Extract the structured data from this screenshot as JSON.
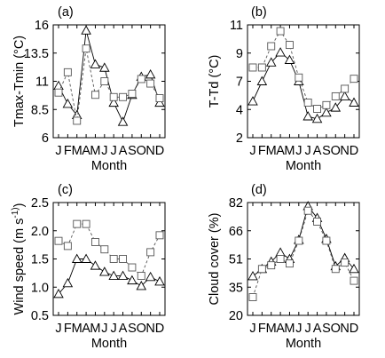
{
  "chart_data": [
    {
      "type": "line",
      "panel_label": "(a)",
      "ylabel": "Tmax-Tmin (",
      "ylabel_unit": "°C)",
      "xlabel": "Month",
      "categories": [
        "J",
        "F",
        "M",
        "A",
        "M",
        "J",
        "J",
        "A",
        "S",
        "O",
        "N",
        "D"
      ],
      "yticks": [
        "6",
        "8.5",
        "11",
        "13.5",
        "16"
      ],
      "ylim": [
        6,
        16
      ],
      "series": [
        {
          "marker": "triangle",
          "style": "solid",
          "values": [
            10.6,
            9.0,
            8.0,
            15.5,
            12.5,
            12.2,
            9.1,
            7.4,
            9.8,
            11.4,
            11.6,
            9.1
          ]
        },
        {
          "marker": "square",
          "style": "dashed",
          "values": [
            10.0,
            11.8,
            7.5,
            13.9,
            9.8,
            11.0,
            9.6,
            9.6,
            9.9,
            11.2,
            10.8,
            9.5
          ]
        }
      ]
    },
    {
      "type": "line",
      "panel_label": "(b)",
      "ylabel": "T-Td (",
      "ylabel_unit": "°C)",
      "xlabel": "Month",
      "categories": [
        "J",
        "F",
        "M",
        "A",
        "M",
        "J",
        "J",
        "A",
        "S",
        "O",
        "N",
        "D"
      ],
      "yticks": [
        "2",
        "4",
        "7",
        "9",
        "11"
      ],
      "ylim": [
        2,
        11
      ],
      "series": [
        {
          "marker": "triangle",
          "style": "solid",
          "values": [
            4.9,
            6.5,
            8.0,
            8.8,
            8.2,
            6.5,
            3.7,
            3.5,
            4.0,
            4.4,
            5.3,
            4.8
          ]
        },
        {
          "marker": "square",
          "style": "dashed",
          "values": [
            7.6,
            7.6,
            9.3,
            10.5,
            9.4,
            6.8,
            4.8,
            4.3,
            4.6,
            5.3,
            5.9,
            6.7
          ]
        }
      ]
    },
    {
      "type": "line",
      "panel_label": "(c)",
      "ylabel": "Wind speed (m s",
      "ylabel_unit": "-1)",
      "xlabel": "Month",
      "categories": [
        "J",
        "F",
        "M",
        "A",
        "M",
        "J",
        "J",
        "A",
        "S",
        "O",
        "N",
        "D"
      ],
      "yticks": [
        "0.5",
        "1.0",
        "1.5",
        "2.0",
        "2.5"
      ],
      "ylim": [
        0.5,
        2.5
      ],
      "series": [
        {
          "marker": "triangle",
          "style": "solid",
          "values": [
            0.88,
            1.07,
            1.5,
            1.5,
            1.38,
            1.27,
            1.2,
            1.2,
            1.12,
            1.02,
            1.18,
            1.1
          ]
        },
        {
          "marker": "square",
          "style": "dashed",
          "values": [
            1.82,
            1.73,
            2.12,
            2.12,
            1.8,
            1.67,
            1.5,
            1.5,
            1.35,
            1.2,
            1.62,
            1.92
          ]
        }
      ]
    },
    {
      "type": "line",
      "panel_label": "(d)",
      "ylabel": "Cloud cover (%)",
      "ylabel_unit": "",
      "xlabel": "Month",
      "categories": [
        "J",
        "F",
        "M",
        "A",
        "M",
        "J",
        "J",
        "A",
        "S",
        "O",
        "N",
        "D"
      ],
      "yticks": [
        "20",
        "35",
        "51",
        "66",
        "82"
      ],
      "ylim": [
        20,
        82
      ],
      "series": [
        {
          "marker": "triangle",
          "style": "solid",
          "values": [
            41.5,
            45.5,
            49.5,
            54.5,
            51.0,
            61.5,
            80.0,
            73.5,
            62.0,
            47.0,
            51.5,
            45.5
          ]
        },
        {
          "marker": "square",
          "style": "dashed",
          "values": [
            30.0,
            45.5,
            47.5,
            51.0,
            48.5,
            61.0,
            77.5,
            71.5,
            61.0,
            45.5,
            49.0,
            39.0
          ]
        }
      ]
    }
  ]
}
